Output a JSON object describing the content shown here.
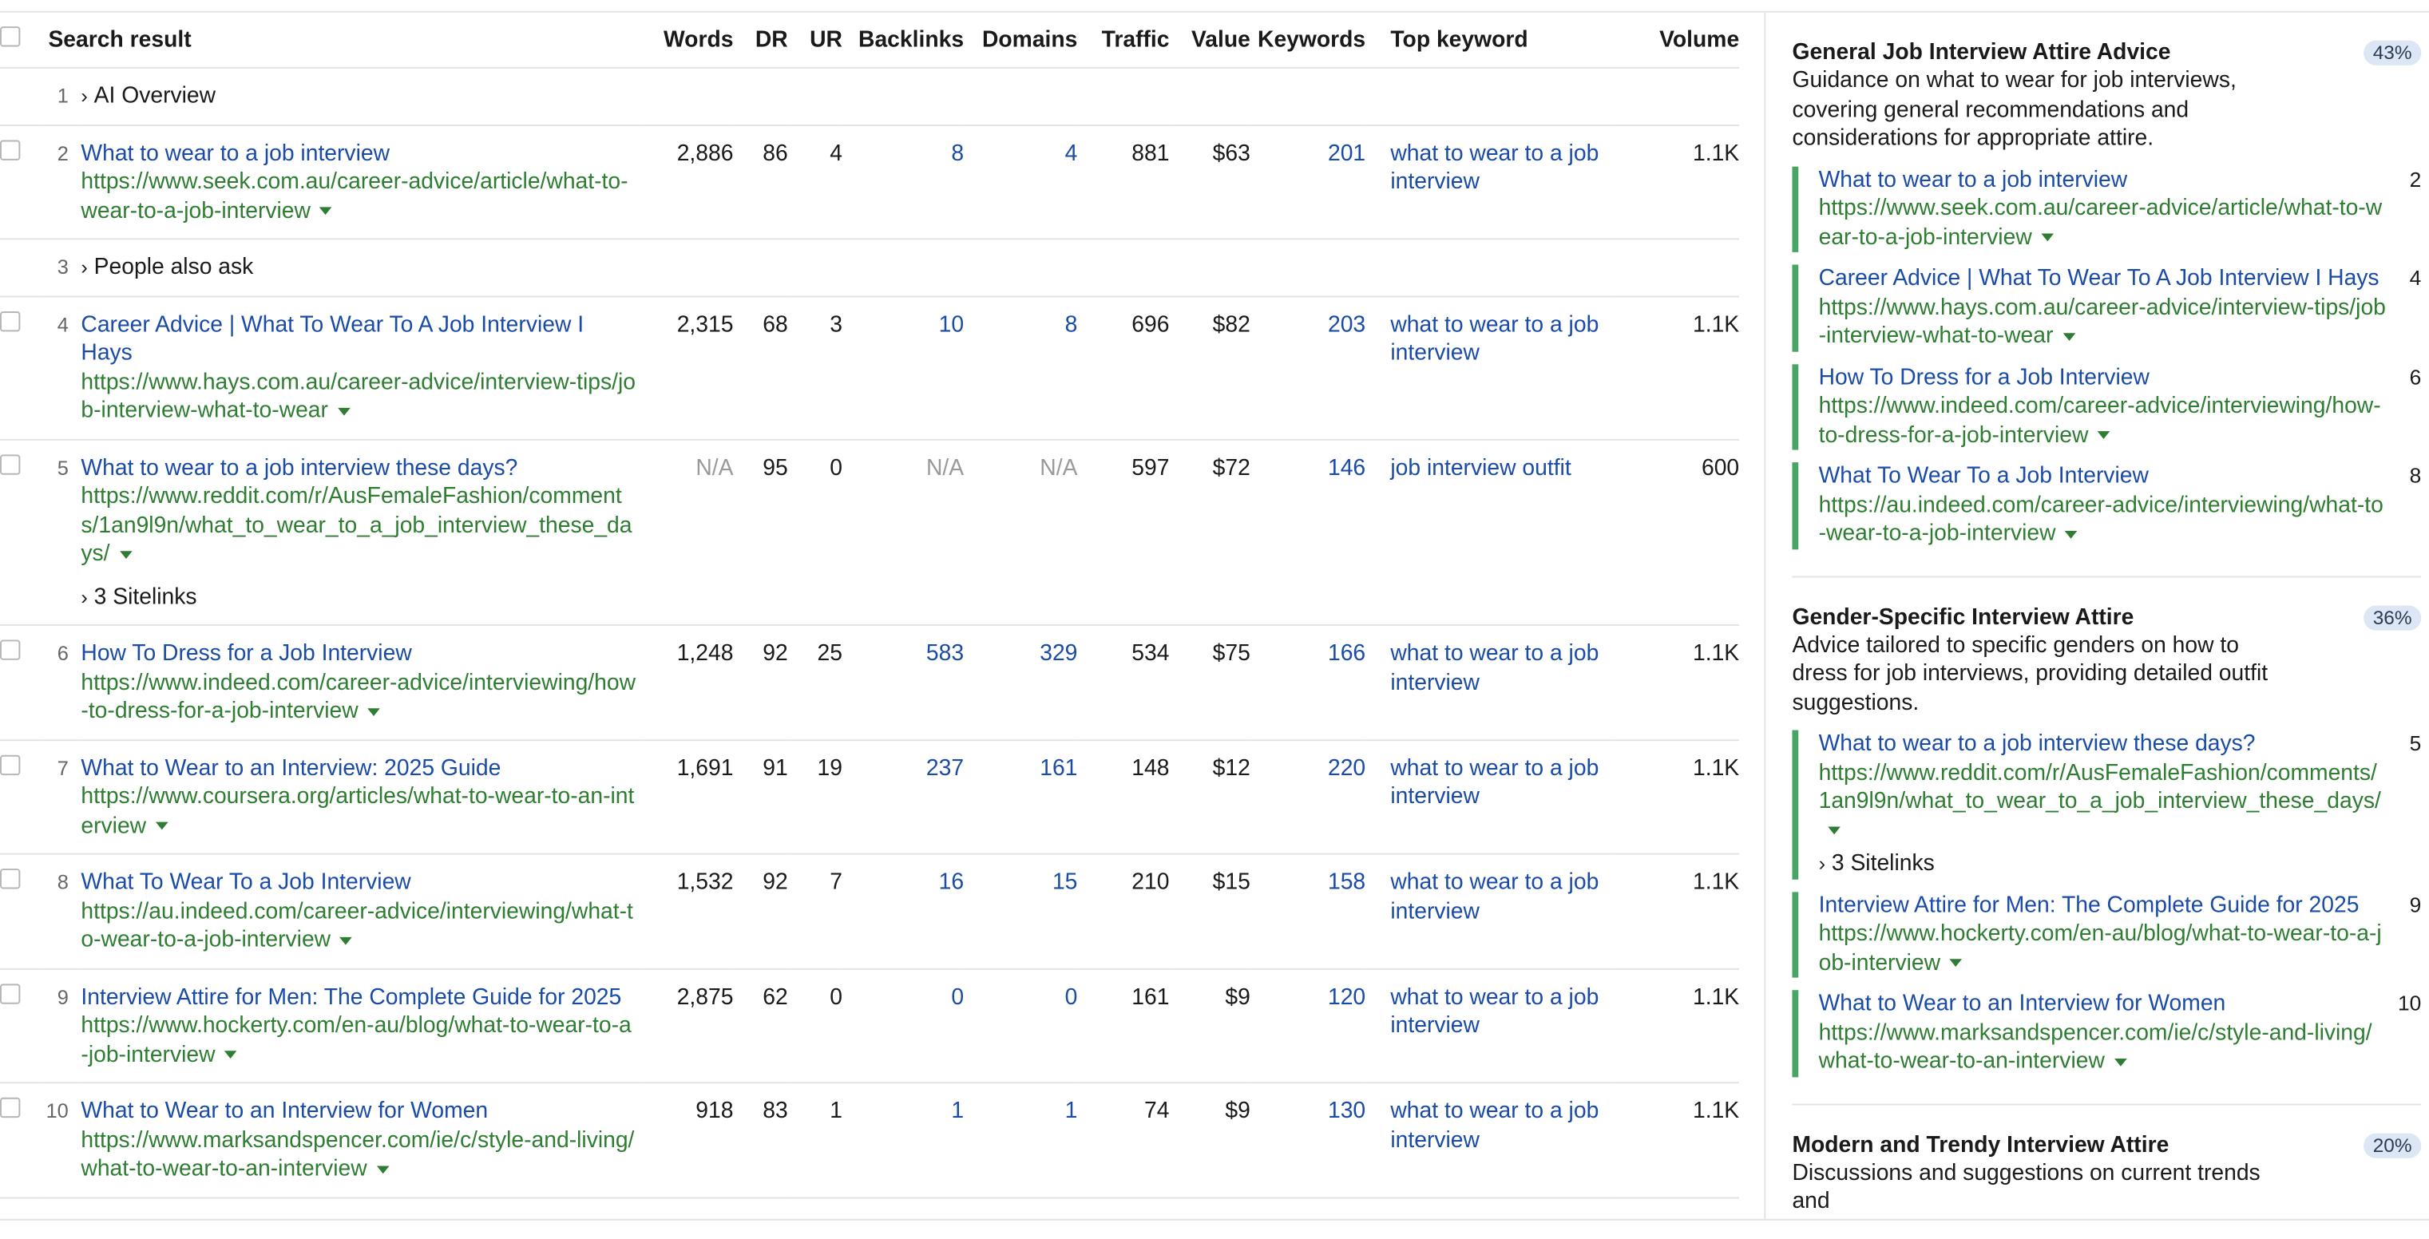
{
  "table": {
    "columns": {
      "search_result": "Search result",
      "words": "Words",
      "dr": "DR",
      "ur": "UR",
      "backlinks": "Backlinks",
      "domains": "Domains",
      "traffic": "Traffic",
      "value": "Value",
      "keywords": "Keywords",
      "top_keyword": "Top keyword",
      "volume": "Volume"
    },
    "rows": [
      {
        "pos": "1",
        "feature": "AI Overview"
      },
      {
        "pos": "2",
        "title": "What to wear to a job interview",
        "url": "https://www.seek.com.au/career-advice/article/what-to-wear-to-a-job-interview",
        "words": "2,886",
        "dr": "86",
        "ur": "4",
        "backlinks": "8",
        "domains": "4",
        "traffic": "881",
        "value": "$63",
        "keywords": "201",
        "top_keyword": "what to wear to a job interview",
        "volume": "1.1K"
      },
      {
        "pos": "3",
        "feature": "People also ask"
      },
      {
        "pos": "4",
        "title": "Career Advice | What To Wear To A Job Interview I Hays",
        "url": "https://www.hays.com.au/career-advice/interview-tips/job-interview-what-to-wear",
        "words": "2,315",
        "dr": "68",
        "ur": "3",
        "backlinks": "10",
        "domains": "8",
        "traffic": "696",
        "value": "$82",
        "keywords": "203",
        "top_keyword": "what to wear to a job interview",
        "volume": "1.1K"
      },
      {
        "pos": "5",
        "title": "What to wear to a job interview these days?",
        "url": "https://www.reddit.com/r/AusFemaleFashion/comments/1an9l9n/what_to_wear_to_a_job_interview_these_days/",
        "words": "N/A",
        "dr": "95",
        "ur": "0",
        "backlinks": "N/A",
        "domains": "N/A",
        "traffic": "597",
        "value": "$72",
        "keywords": "146",
        "top_keyword": "job interview outfit",
        "volume": "600",
        "sitelinks": "3 Sitelinks"
      },
      {
        "pos": "6",
        "title": "How To Dress for a Job Interview",
        "url": "https://www.indeed.com/career-advice/interviewing/how-to-dress-for-a-job-interview",
        "words": "1,248",
        "dr": "92",
        "ur": "25",
        "backlinks": "583",
        "domains": "329",
        "traffic": "534",
        "value": "$75",
        "keywords": "166",
        "top_keyword": "what to wear to a job interview",
        "volume": "1.1K"
      },
      {
        "pos": "7",
        "title": "What to Wear to an Interview: 2025 Guide",
        "url": "https://www.coursera.org/articles/what-to-wear-to-an-interview",
        "words": "1,691",
        "dr": "91",
        "ur": "19",
        "backlinks": "237",
        "domains": "161",
        "traffic": "148",
        "value": "$12",
        "keywords": "220",
        "top_keyword": "what to wear to a job interview",
        "volume": "1.1K"
      },
      {
        "pos": "8",
        "title": "What To Wear To a Job Interview",
        "url": "https://au.indeed.com/career-advice/interviewing/what-to-wear-to-a-job-interview",
        "words": "1,532",
        "dr": "92",
        "ur": "7",
        "backlinks": "16",
        "domains": "15",
        "traffic": "210",
        "value": "$15",
        "keywords": "158",
        "top_keyword": "what to wear to a job interview",
        "volume": "1.1K"
      },
      {
        "pos": "9",
        "title": "Interview Attire for Men: The Complete Guide for 2025",
        "url": "https://www.hockerty.com/en-au/blog/what-to-wear-to-a-job-interview",
        "words": "2,875",
        "dr": "62",
        "ur": "0",
        "backlinks": "0",
        "domains": "0",
        "traffic": "161",
        "value": "$9",
        "keywords": "120",
        "top_keyword": "what to wear to a job interview",
        "volume": "1.1K"
      },
      {
        "pos": "10",
        "title": "What to Wear to an Interview for Women",
        "url": "https://www.marksandspencer.com/ie/c/style-and-living/what-to-wear-to-an-interview",
        "words": "918",
        "dr": "83",
        "ur": "1",
        "backlinks": "1",
        "domains": "1",
        "traffic": "74",
        "value": "$9",
        "keywords": "130",
        "top_keyword": "what to wear to a job interview",
        "volume": "1.1K"
      }
    ]
  },
  "clusters": [
    {
      "title": "General Job Interview Attire Advice",
      "percent": "43%",
      "description": "Guidance on what to wear for job interviews, covering general recommendations and considerations for appropriate attire.",
      "items": [
        {
          "title": "What to wear to a job interview",
          "url": "https://www.seek.com.au/career-advice/article/what-to-wear-to-a-job-interview",
          "pos": "2"
        },
        {
          "title": "Career Advice | What To Wear To A Job Interview I Hays",
          "url": "https://www.hays.com.au/career-advice/interview-tips/job-interview-what-to-wear",
          "pos": "4"
        },
        {
          "title": "How To Dress for a Job Interview",
          "url": "https://www.indeed.com/career-advice/interviewing/how-to-dress-for-a-job-interview",
          "pos": "6"
        },
        {
          "title": "What To Wear To a Job Interview",
          "url": "https://au.indeed.com/career-advice/interviewing/what-to-wear-to-a-job-interview",
          "pos": "8"
        }
      ]
    },
    {
      "title": "Gender-Specific Interview Attire",
      "percent": "36%",
      "description": "Advice tailored to specific genders on how to dress for job interviews, providing detailed outfit suggestions.",
      "items": [
        {
          "title": "What to wear to a job interview these days?",
          "url": "https://www.reddit.com/r/AusFemaleFashion/comments/1an9l9n/what_to_wear_to_a_job_interview_these_days/",
          "pos": "5",
          "sitelinks": "3 Sitelinks"
        },
        {
          "title": "Interview Attire for Men: The Complete Guide for 2025",
          "url": "https://www.hockerty.com/en-au/blog/what-to-wear-to-a-job-interview",
          "pos": "9"
        },
        {
          "title": "What to Wear to an Interview for Women",
          "url": "https://www.marksandspencer.com/ie/c/style-and-living/what-to-wear-to-an-interview",
          "pos": "10"
        }
      ]
    },
    {
      "title": "Modern and Trendy Interview Attire",
      "percent": "20%",
      "description": "Discussions and suggestions on current trends and",
      "items": []
    }
  ]
}
